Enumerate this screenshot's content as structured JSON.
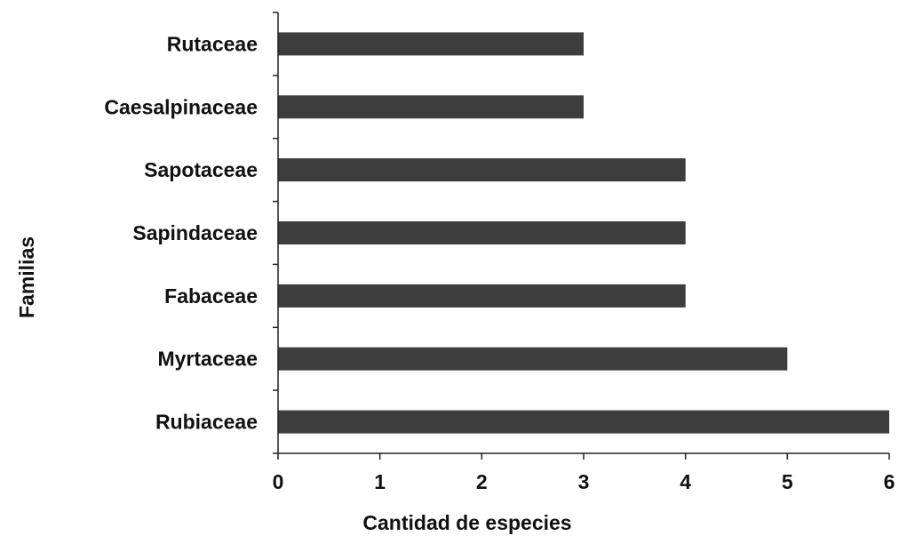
{
  "chart_data": {
    "type": "bar",
    "orientation": "horizontal",
    "categories": [
      "Rubiaceae",
      "Myrtaceae",
      "Fabaceae",
      "Sapindaceae",
      "Sapotaceae",
      "Caesalpinaceae",
      "Rutaceae"
    ],
    "values": [
      6,
      5,
      4,
      4,
      4,
      3,
      3
    ],
    "xlabel": "Cantidad de especies",
    "ylabel": "Familias",
    "xlim": [
      0,
      6
    ],
    "xticks": [
      "0",
      "1",
      "2",
      "3",
      "4",
      "5",
      "6"
    ],
    "grid": false,
    "legend": "none",
    "bar_color": "#3d3d3d",
    "axis_color": "#222222"
  }
}
